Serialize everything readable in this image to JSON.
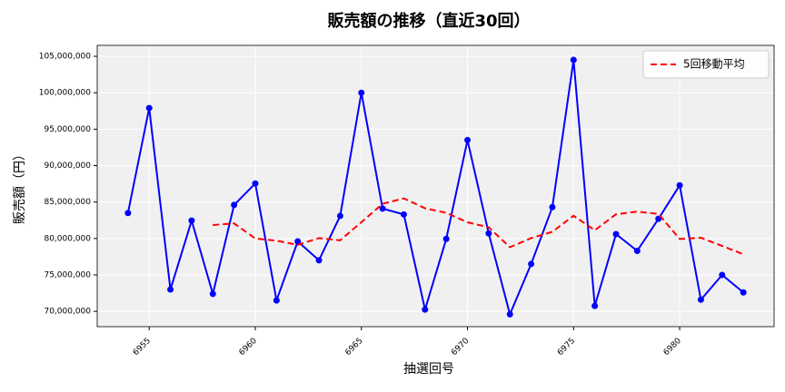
{
  "chart_data": {
    "type": "line",
    "title": "販売額の推移（直近30回）",
    "x_label": "抽選回号",
    "y_label": "販売額（円）",
    "x": [
      6954,
      6955,
      6956,
      6957,
      6958,
      6959,
      6960,
      6961,
      6962,
      6963,
      6964,
      6965,
      6966,
      6967,
      6968,
      6969,
      6970,
      6971,
      6972,
      6973,
      6974,
      6975,
      6976,
      6977,
      6978,
      6979,
      6980,
      6981,
      6982,
      6983
    ],
    "series": [
      {
        "color": "#0000ff",
        "marker": true,
        "dashed": false,
        "values": [
          83500000,
          97900000,
          73000000,
          82450000,
          72400000,
          84600000,
          87550000,
          71500000,
          79600000,
          77000000,
          83100000,
          100000000,
          84100000,
          83300000,
          70250000,
          79950000,
          93500000,
          80700000,
          69600000,
          76500000,
          84300000,
          104500000,
          70750000,
          80600000,
          78300000,
          82700000,
          87300000,
          71600000,
          75000000,
          72600000
        ]
      },
      {
        "name": "5回移動平均",
        "color": "#ff0000",
        "marker": false,
        "dashed": true,
        "values": [
          null,
          null,
          null,
          null,
          81850000,
          82070000,
          80000000,
          79700000,
          79130000,
          80050000,
          79750000,
          82240000,
          84760000,
          85500000,
          84150000,
          83520000,
          82220000,
          81540000,
          78800000,
          80050000,
          80920000,
          83120000,
          81130000,
          83330000,
          83690000,
          83370000,
          79930000,
          80100000,
          78980000,
          77840000
        ]
      }
    ],
    "xlim": [
      6952.55,
      6984.45
    ],
    "xticks": [
      6955,
      6960,
      6965,
      6970,
      6975,
      6980
    ],
    "ylim": [
      67900000,
      106500000
    ],
    "yticks": [
      {
        "value": 70000000,
        "label": "70,000,000"
      },
      {
        "value": 75000000,
        "label": "75,000,000"
      },
      {
        "value": 80000000,
        "label": "80,000,000"
      },
      {
        "value": 85000000,
        "label": "85,000,000"
      },
      {
        "value": 90000000,
        "label": "90,000,000"
      },
      {
        "value": 95000000,
        "label": "95,000,000"
      },
      {
        "value": 100000000,
        "label": "100,000,000"
      },
      {
        "value": 105000000,
        "label": "105,000,000"
      }
    ],
    "grid": true,
    "legend": "upper-right"
  }
}
